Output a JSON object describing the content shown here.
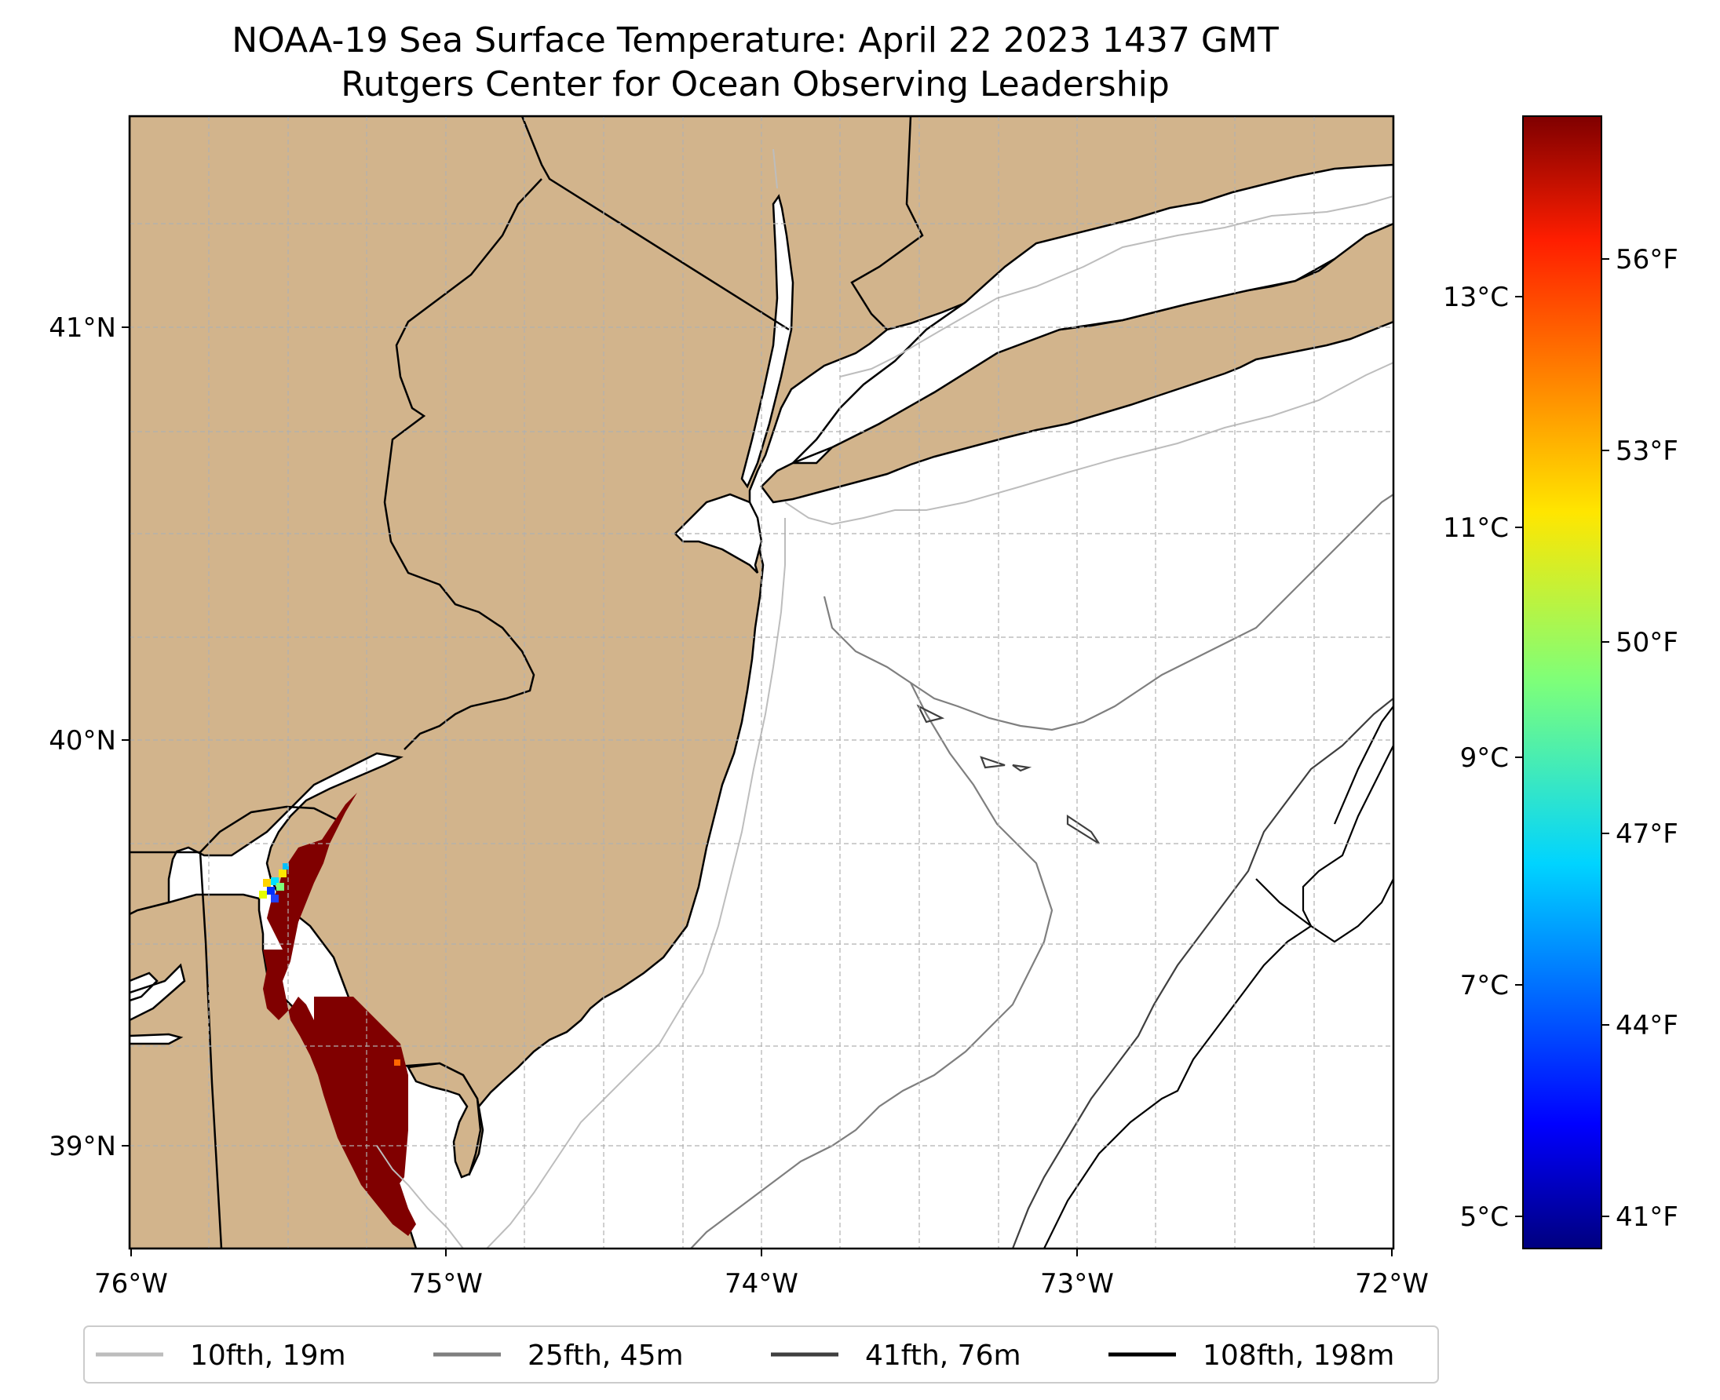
{
  "title": {
    "line1": "NOAA-19 Sea Surface Temperature: April 22 2023 1437 GMT",
    "line2": "Rutgers Center for Ocean Observing Leadership"
  },
  "map": {
    "lon_range": [
      -76,
      -72
    ],
    "lat_range": [
      38.72,
      41.55
    ],
    "lon_labels": [
      "76°W",
      "75°W",
      "74°W",
      "73°W",
      "72°W"
    ],
    "lat_labels": [
      "41°N",
      "40°N",
      "39°N"
    ],
    "colors": {
      "land": "#d2b48c",
      "ocean": "#ffffff",
      "coast": "#000000",
      "grid": "#b0b0b0",
      "sst_warm": "#800000"
    }
  },
  "colorbar": {
    "colormap": "jet",
    "celsius_labels": [
      "13°C",
      "11°C",
      "9°C",
      "7°C",
      "5°C"
    ],
    "fahrenheit_labels": [
      "56°F",
      "53°F",
      "50°F",
      "47°F",
      "44°F",
      "41°F"
    ]
  },
  "legend": {
    "items": [
      {
        "label": "10fth, 19m",
        "color": "#bdbdbd"
      },
      {
        "label": "25fth, 45m",
        "color": "#7f7f7f"
      },
      {
        "label": "41fth, 76m",
        "color": "#3f3f3f"
      },
      {
        "label": "108fth, 198m",
        "color": "#000000"
      }
    ]
  }
}
